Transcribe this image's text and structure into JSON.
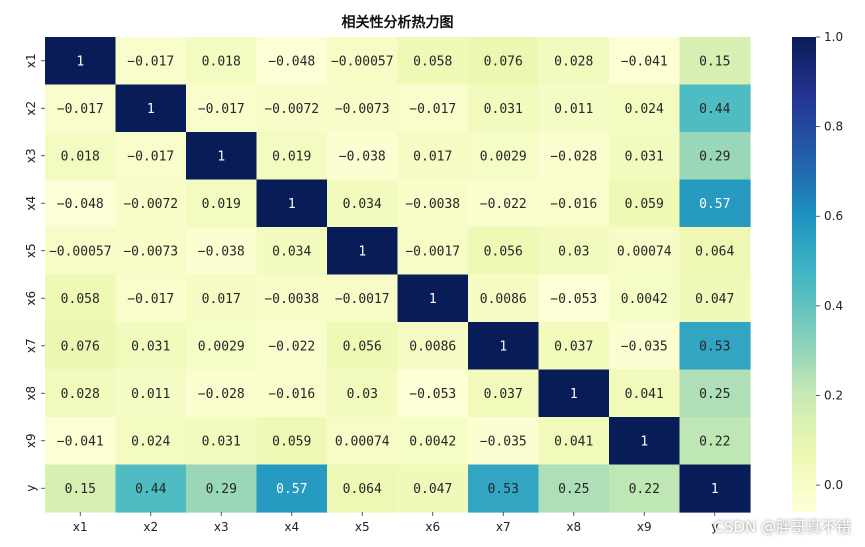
{
  "chart_data": {
    "type": "heatmap",
    "title": "相关性分析热力图",
    "xlabel": "",
    "ylabel": "",
    "x_labels": [
      "x1",
      "x2",
      "x3",
      "x4",
      "x5",
      "x6",
      "x7",
      "x8",
      "x9",
      "y"
    ],
    "y_labels": [
      "x1",
      "x2",
      "x3",
      "x4",
      "x5",
      "x6",
      "x7",
      "x8",
      "x9",
      "y"
    ],
    "values": [
      [
        1,
        -0.017,
        0.018,
        -0.048,
        -0.00057,
        0.058,
        0.076,
        0.028,
        -0.041,
        0.15
      ],
      [
        -0.017,
        1,
        -0.017,
        -0.0072,
        -0.0073,
        -0.017,
        0.031,
        0.011,
        0.024,
        0.44
      ],
      [
        0.018,
        -0.017,
        1,
        0.019,
        -0.038,
        0.017,
        0.0029,
        -0.028,
        0.031,
        0.29
      ],
      [
        -0.048,
        -0.0072,
        0.019,
        1,
        0.034,
        -0.0038,
        -0.022,
        -0.016,
        0.059,
        0.57
      ],
      [
        -0.00057,
        -0.0073,
        -0.038,
        0.034,
        1,
        -0.0017,
        0.056,
        0.03,
        0.00074,
        0.064
      ],
      [
        0.058,
        -0.017,
        0.017,
        -0.0038,
        -0.0017,
        1,
        0.0086,
        -0.053,
        0.0042,
        0.047
      ],
      [
        0.076,
        0.031,
        0.0029,
        -0.022,
        0.056,
        0.0086,
        1,
        0.037,
        -0.035,
        0.53
      ],
      [
        0.028,
        0.011,
        -0.028,
        -0.016,
        0.03,
        -0.053,
        0.037,
        1,
        0.041,
        0.25
      ],
      [
        -0.041,
        0.024,
        0.031,
        0.059,
        0.00074,
        0.0042,
        -0.035,
        0.041,
        1,
        0.22
      ],
      [
        0.15,
        0.44,
        0.29,
        0.57,
        0.064,
        0.047,
        0.53,
        0.25,
        0.22,
        1
      ]
    ],
    "labels": [
      [
        "1",
        "−0.017",
        "0.018",
        "−0.048",
        "−0.00057",
        "0.058",
        "0.076",
        "0.028",
        "−0.041",
        "0.15"
      ],
      [
        "−0.017",
        "1",
        "−0.017",
        "−0.0072",
        "−0.0073",
        "−0.017",
        "0.031",
        "0.011",
        "0.024",
        "0.44"
      ],
      [
        "0.018",
        "−0.017",
        "1",
        "0.019",
        "−0.038",
        "0.017",
        "0.0029",
        "−0.028",
        "0.031",
        "0.29"
      ],
      [
        "−0.048",
        "−0.0072",
        "0.019",
        "1",
        "0.034",
        "−0.0038",
        "−0.022",
        "−0.016",
        "0.059",
        "0.57"
      ],
      [
        "−0.00057",
        "−0.0073",
        "−0.038",
        "0.034",
        "1",
        "−0.0017",
        "0.056",
        "0.03",
        "0.00074",
        "0.064"
      ],
      [
        "0.058",
        "−0.017",
        "0.017",
        "−0.0038",
        "−0.0017",
        "1",
        "0.0086",
        "−0.053",
        "0.0042",
        "0.047"
      ],
      [
        "0.076",
        "0.031",
        "0.0029",
        "−0.022",
        "0.056",
        "0.0086",
        "1",
        "0.037",
        "−0.035",
        "0.53"
      ],
      [
        "0.028",
        "0.011",
        "−0.028",
        "−0.016",
        "0.03",
        "−0.053",
        "0.037",
        "1",
        "0.041",
        "0.25"
      ],
      [
        "−0.041",
        "0.024",
        "0.031",
        "0.059",
        "0.00074",
        "0.0042",
        "−0.035",
        "0.041",
        "1",
        "0.22"
      ],
      [
        "0.15",
        "0.44",
        "0.29",
        "0.57",
        "0.064",
        "0.047",
        "0.53",
        "0.25",
        "0.22",
        "1"
      ]
    ],
    "colormap": "YlGnBu",
    "color_range": [
      -0.06,
      1.0
    ],
    "colorbar_ticks": [
      0.0,
      0.2,
      0.4,
      0.6,
      0.8,
      1.0
    ],
    "colorbar_tick_labels": [
      "0.0",
      "0.2",
      "0.4",
      "0.6",
      "0.8",
      "1.0"
    ],
    "colors": {
      "ylgnbu": [
        "#ffffd9",
        "#edf8b1",
        "#c7e9b4",
        "#7fcdbb",
        "#41b6c4",
        "#1d91c0",
        "#225ea8",
        "#253494",
        "#081d58"
      ],
      "text_dark": "#262626",
      "text_light": "#ffffff"
    }
  },
  "watermark": "CSDN @胖哥真不错"
}
